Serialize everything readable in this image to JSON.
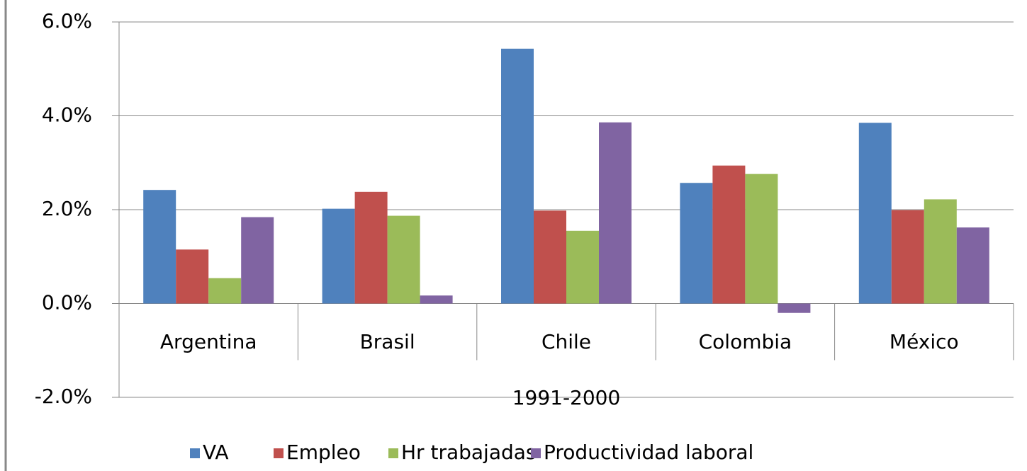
{
  "chart_data": {
    "type": "bar",
    "xlabel": "1991-2000",
    "categories": [
      "Argentina",
      "Brasil",
      "Chile",
      "Colombia",
      "México"
    ],
    "series": [
      {
        "name": "VA",
        "color": "#4f81bd",
        "values": [
          2.42,
          2.02,
          5.43,
          2.57,
          3.85
        ]
      },
      {
        "name": "Empleo",
        "color": "#c0504d",
        "values": [
          1.15,
          2.38,
          1.98,
          2.94,
          1.99
        ]
      },
      {
        "name": "Hr trabajadas",
        "color": "#9bbb59",
        "values": [
          0.54,
          1.87,
          1.55,
          2.76,
          2.22
        ]
      },
      {
        "name": "Productividad laboral",
        "color": "#8064a2",
        "values": [
          1.84,
          0.17,
          3.86,
          -0.2,
          1.62
        ]
      }
    ],
    "ylim": [
      -2,
      6
    ],
    "yticks": [
      {
        "value": -2,
        "label": "-2.0%"
      },
      {
        "value": 0,
        "label": "0.0%"
      },
      {
        "value": 2,
        "label": "2.0%"
      },
      {
        "value": 4,
        "label": "4.0%"
      },
      {
        "value": 6,
        "label": "6.0%"
      }
    ],
    "grid": true,
    "legend": "bottom"
  }
}
